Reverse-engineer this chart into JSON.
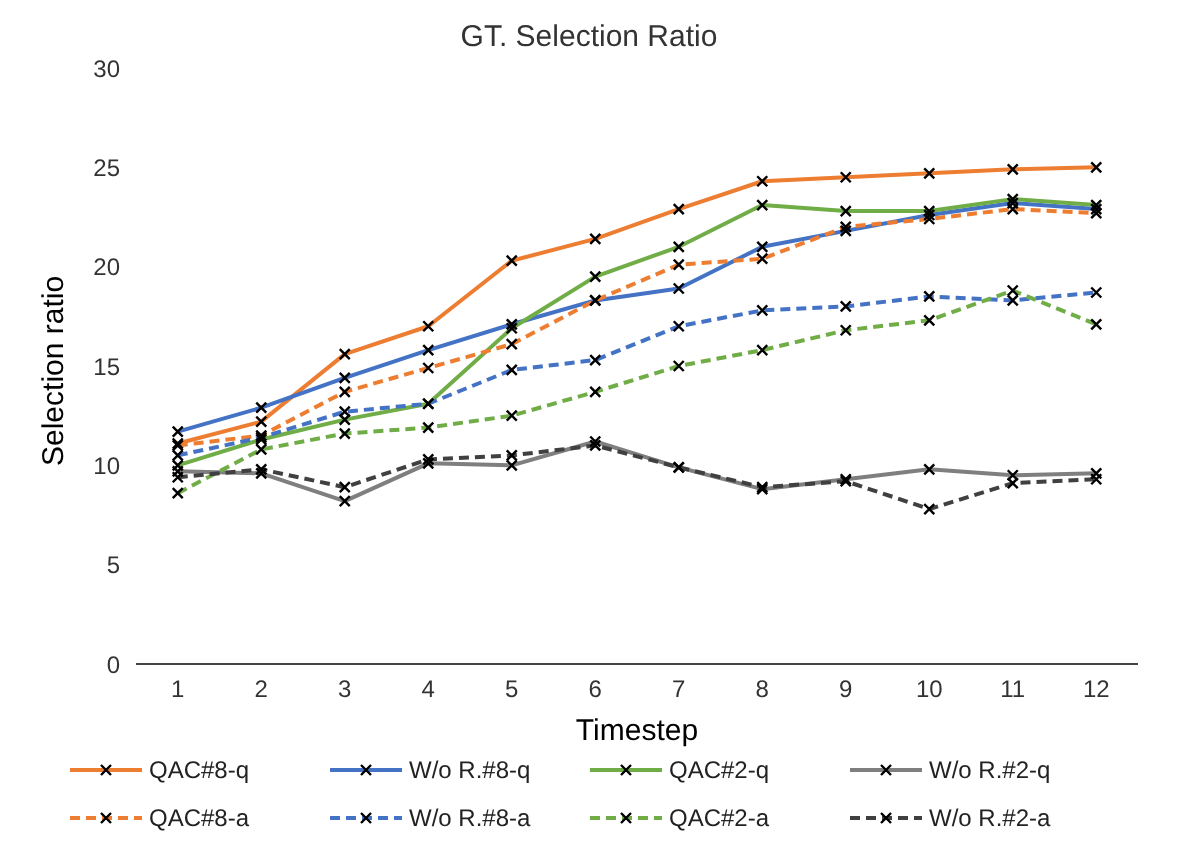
{
  "chart_data": {
    "type": "line",
    "title": "GT. Selection Ratio",
    "xlabel": "Timestep",
    "ylabel": "Selection ratio",
    "x": [
      1,
      2,
      3,
      4,
      5,
      6,
      7,
      8,
      9,
      10,
      11,
      12
    ],
    "xlim": [
      0.5,
      12.5
    ],
    "xticks": [
      1,
      2,
      3,
      4,
      5,
      6,
      7,
      8,
      9,
      10,
      11,
      12
    ],
    "ylim": [
      0,
      30
    ],
    "yticks": [
      0,
      5,
      10,
      15,
      20,
      25,
      30
    ],
    "grid": false,
    "legend": "bottom",
    "marker": "cross",
    "series": [
      {
        "name": "QAC#8-q",
        "color": "#ed7d31",
        "line_style": "solid",
        "values": [
          11.1,
          12.2,
          15.6,
          17.0,
          20.3,
          21.4,
          22.9,
          24.3,
          24.5,
          24.7,
          24.9,
          25.0
        ]
      },
      {
        "name": "W/o R.#8-q",
        "color": "#4472c4",
        "line_style": "solid",
        "values": [
          11.7,
          12.9,
          14.4,
          15.8,
          17.1,
          18.3,
          18.9,
          21.0,
          21.8,
          22.6,
          23.2,
          22.9
        ]
      },
      {
        "name": "QAC#2-q",
        "color": "#70ad47",
        "line_style": "solid",
        "values": [
          10.0,
          11.3,
          12.3,
          13.1,
          16.9,
          19.5,
          21.0,
          23.1,
          22.8,
          22.8,
          23.4,
          23.1
        ]
      },
      {
        "name": "W/o R.#2-q",
        "color": "#7f7f7f",
        "line_style": "solid",
        "values": [
          9.7,
          9.6,
          8.2,
          10.1,
          10.0,
          11.2,
          9.9,
          8.8,
          9.3,
          9.8,
          9.5,
          9.6
        ]
      },
      {
        "name": "QAC#8-a",
        "color": "#ed7d31",
        "line_style": "dashed",
        "values": [
          11.0,
          11.5,
          13.7,
          14.9,
          16.1,
          18.3,
          20.1,
          20.4,
          22.0,
          22.4,
          22.9,
          22.7
        ]
      },
      {
        "name": "W/o R.#8-a",
        "color": "#4472c4",
        "line_style": "dashed",
        "values": [
          10.5,
          11.4,
          12.7,
          13.1,
          14.8,
          15.3,
          17.0,
          17.8,
          18.0,
          18.5,
          18.3,
          18.7
        ]
      },
      {
        "name": "QAC#2-a",
        "color": "#70ad47",
        "line_style": "dashed",
        "values": [
          8.6,
          10.8,
          11.6,
          11.9,
          12.5,
          13.7,
          15.0,
          15.8,
          16.8,
          17.3,
          18.8,
          17.1
        ]
      },
      {
        "name": "W/o R.#2-a",
        "color": "#404040",
        "line_style": "dashed",
        "values": [
          9.4,
          9.8,
          8.9,
          10.3,
          10.5,
          11.0,
          9.9,
          8.9,
          9.2,
          7.8,
          9.1,
          9.3
        ]
      }
    ]
  }
}
